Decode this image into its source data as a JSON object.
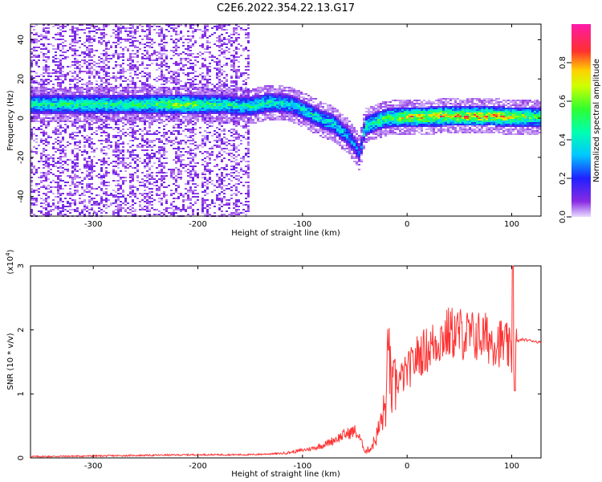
{
  "title": "C2E6.2022.354.22.13.G17",
  "chart_data": [
    {
      "type": "heatmap",
      "xlabel": "Height of straight line (km)",
      "ylabel": "Frequency (Hz)",
      "xlim": [
        -360,
        128
      ],
      "ylim": [
        -50,
        48
      ],
      "xticks": [
        -300,
        -200,
        -100,
        0,
        100
      ],
      "yticks": [
        -40,
        -20,
        0,
        20,
        40
      ],
      "colorbar": {
        "label": "Normalized spectral amplitude",
        "range": [
          0,
          1
        ],
        "ticks": [
          "0.0",
          "0.2",
          "0.4",
          "0.6",
          "0.8"
        ],
        "colormap": "rainbow (purple-blue-cyan-green-yellow-red-magenta)"
      },
      "ridge": [
        {
          "x": -355,
          "f": 7,
          "a": 0.5
        },
        {
          "x": -300,
          "f": 7,
          "a": 0.55
        },
        {
          "x": -250,
          "f": 7,
          "a": 0.55
        },
        {
          "x": -220,
          "f": 7,
          "a": 0.7
        },
        {
          "x": -180,
          "f": 7,
          "a": 0.55
        },
        {
          "x": -150,
          "f": 6,
          "a": 0.5
        },
        {
          "x": -130,
          "f": 8,
          "a": 0.5
        },
        {
          "x": -110,
          "f": 7,
          "a": 0.45
        },
        {
          "x": -95,
          "f": 3,
          "a": 0.45
        },
        {
          "x": -80,
          "f": -1,
          "a": 0.45
        },
        {
          "x": -70,
          "f": -3,
          "a": 0.45
        },
        {
          "x": -55,
          "f": -10,
          "a": 0.35
        },
        {
          "x": -45,
          "f": -18,
          "a": 0.25
        },
        {
          "x": -40,
          "f": -4,
          "a": 0.5
        },
        {
          "x": -20,
          "f": 0,
          "a": 0.6
        },
        {
          "x": 0,
          "f": 0.5,
          "a": 0.8
        },
        {
          "x": 40,
          "f": 1,
          "a": 0.85
        },
        {
          "x": 80,
          "f": 1,
          "a": 0.85
        },
        {
          "x": 110,
          "f": 0.5,
          "a": 0.7
        },
        {
          "x": 128,
          "f": 0.5,
          "a": 0.6
        }
      ]
    },
    {
      "type": "line",
      "xlabel": "Height of straight line (km)",
      "ylabel": "SNR (10 * v/v)",
      "scale_note": "(x10",
      "scale_exp": "4",
      "scale_close": ")",
      "xlim": [
        -360,
        128
      ],
      "ylim": [
        0,
        3
      ],
      "xticks": [
        -300,
        -200,
        -100,
        0,
        100
      ],
      "yticks": [
        0,
        1,
        2,
        3
      ],
      "color": "#ff3333",
      "series": [
        {
          "x": [
            -360,
            -300,
            -250,
            -200,
            -150,
            -120,
            -110,
            -100,
            -90,
            -80,
            -70,
            -60,
            -50,
            -45,
            -40,
            -35,
            -30,
            -25,
            -20,
            -18,
            -15,
            -12,
            -10,
            -5,
            0,
            5,
            10,
            20,
            30,
            40,
            50,
            60,
            70,
            80,
            90,
            95,
            100,
            105,
            110,
            120,
            128
          ],
          "y": [
            0.02,
            0.03,
            0.04,
            0.05,
            0.05,
            0.07,
            0.09,
            0.12,
            0.15,
            0.2,
            0.28,
            0.36,
            0.42,
            0.3,
            0.1,
            0.15,
            0.3,
            0.55,
            0.85,
            1.7,
            1.0,
            1.1,
            1.2,
            1.25,
            1.35,
            1.45,
            1.6,
            1.7,
            1.85,
            1.95,
            1.95,
            1.9,
            1.9,
            1.85,
            1.8,
            1.75,
            1.6,
            1.82,
            1.85,
            1.83,
            1.8
          ]
        }
      ]
    }
  ]
}
